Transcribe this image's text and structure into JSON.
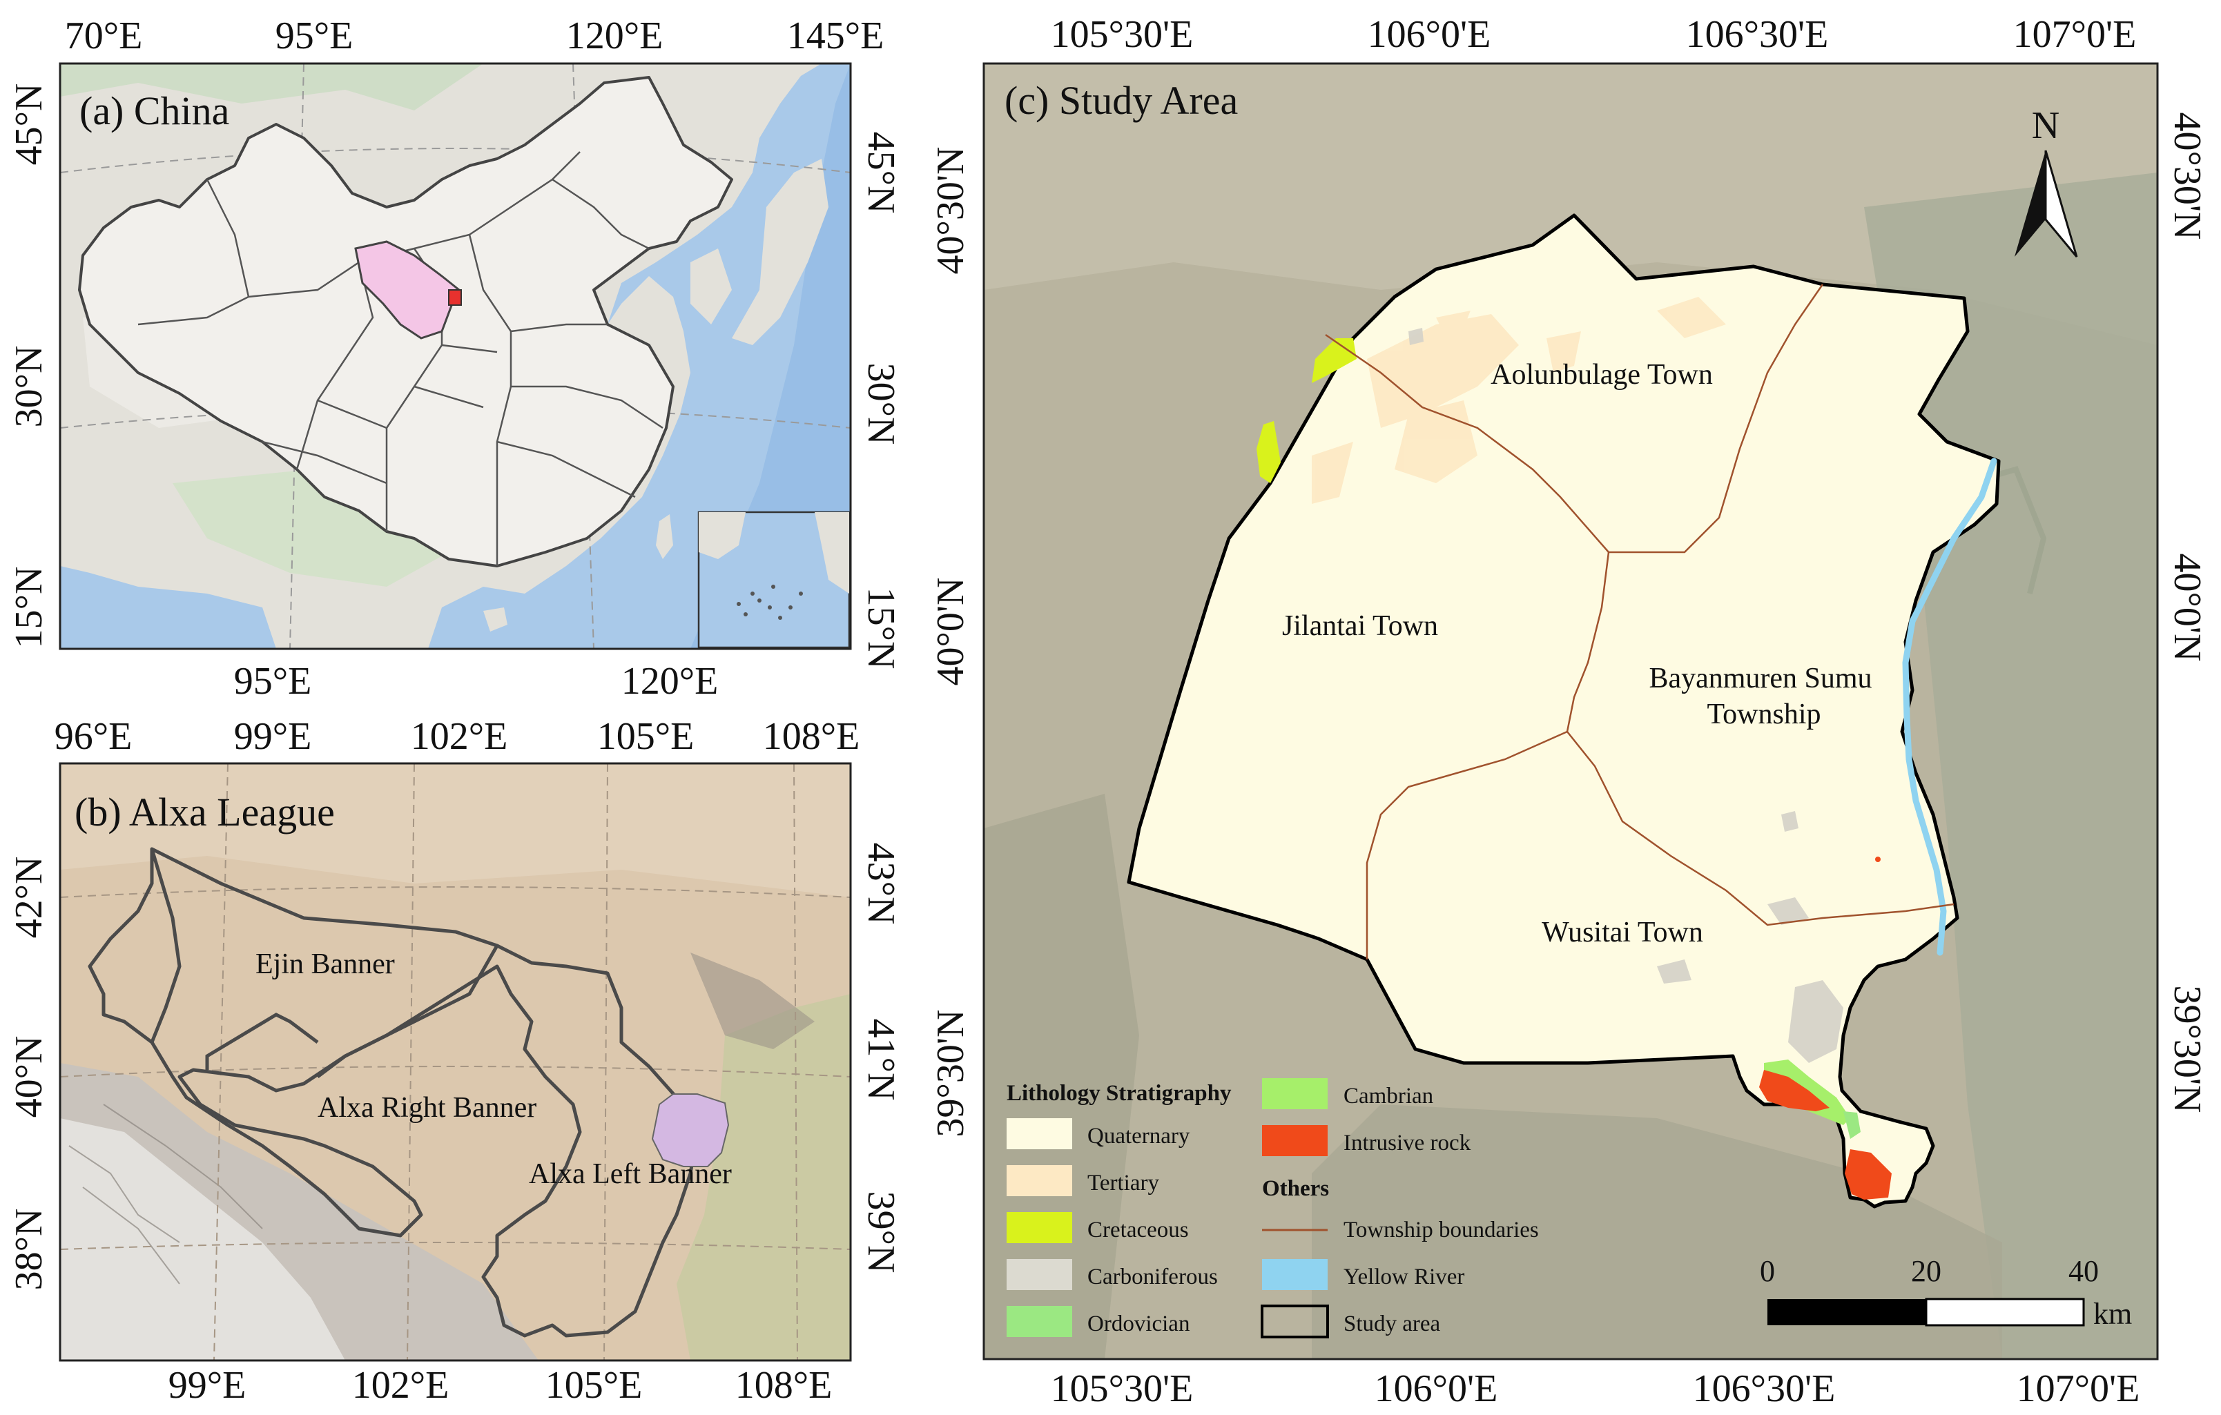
{
  "panels": {
    "a": {
      "title": "(a) China",
      "top_lon": [
        "70°E",
        "95°E",
        "120°E",
        "145°E"
      ],
      "bottom_lon": [
        "95°E",
        "120°E"
      ],
      "left_lat": [
        "45°N",
        "30°N",
        "15°N"
      ],
      "right_lat": [
        "45°N",
        "30°N",
        "15°N"
      ]
    },
    "b": {
      "title": "(b) Alxa League",
      "top_lon": [
        "96°E",
        "99°E",
        "102°E",
        "105°E",
        "108°E"
      ],
      "bottom_lon": [
        "99°E",
        "102°E",
        "105°E",
        "108°E"
      ],
      "left_lat": [
        "42°N",
        "40°N",
        "38°N"
      ],
      "right_lat": [
        "43°N",
        "41°N",
        "39°N"
      ],
      "labels": {
        "ejin": "Ejin Banner",
        "right_banner": "Alxa Right Banner",
        "left_banner": "Alxa Left Banner"
      }
    },
    "c": {
      "title": "(c) Study Area",
      "top_lon": [
        "105°30'E",
        "106°0'E",
        "106°30'E",
        "107°0'E"
      ],
      "bottom_lon": [
        "105°30'E",
        "106°0'E",
        "106°30'E",
        "107°0'E"
      ],
      "left_lat": [
        "40°30'N",
        "40°0'N",
        "39°30'N"
      ],
      "right_lat": [
        "40°30'N",
        "40°0'N",
        "39°30'N"
      ],
      "north": "N",
      "towns": {
        "aolunbulage": "Aolunbulage Town",
        "jilantai": "Jilantai Town",
        "bayanmuren_1": "Bayanmuren Sumu",
        "bayanmuren_2": "Township",
        "wusitai": "Wusitai Town"
      },
      "scale": {
        "ticks": [
          "0",
          "20",
          "40"
        ],
        "unit": "km"
      },
      "legend": {
        "heading1": "Lithology Stratigraphy",
        "heading2": "Others",
        "items": [
          {
            "label": "Quaternary",
            "color": "#fefbe2"
          },
          {
            "label": "Tertiary",
            "color": "#fde9c4"
          },
          {
            "label": "Cretaceous",
            "color": "#d9f21c"
          },
          {
            "label": "Carboniferous",
            "color": "#dcdad0"
          },
          {
            "label": "Ordovician",
            "color": "#9be882"
          },
          {
            "label": "Cambrian",
            "color": "#a6ef6a"
          },
          {
            "label": "Intrusive rock",
            "color": "#f04a1a"
          },
          {
            "label": "Township boundaries",
            "color": "#a0522d"
          },
          {
            "label": "Yellow River",
            "color": "#8fd3f0"
          },
          {
            "label": "Study area",
            "color": "#000000"
          }
        ]
      }
    }
  }
}
